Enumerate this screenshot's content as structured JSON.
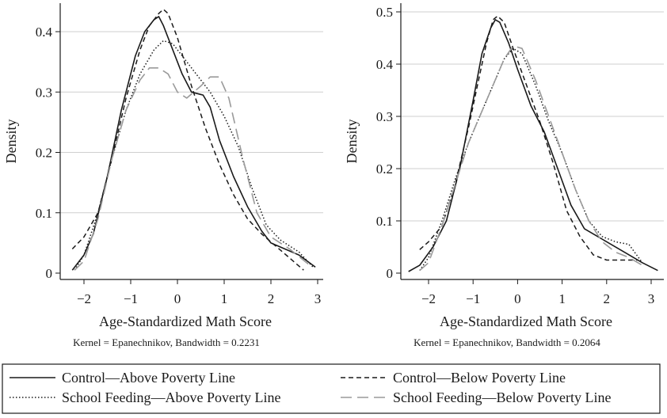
{
  "chart_data": [
    {
      "type": "line",
      "xlabel": "Age-Standardized Math Score",
      "ylabel": "Density",
      "note": "Kernel = Epanechnikov, Bandwidth = 0.2231",
      "xlim": [
        -2.3,
        3.0
      ],
      "ylim": [
        0,
        0.45
      ],
      "xticks": [
        -2,
        -1,
        0,
        1,
        2,
        3
      ],
      "yticks": [
        0,
        0.1,
        0.2,
        0.3,
        0.4
      ],
      "grid": "horizontal",
      "series": [
        {
          "name": "Control—Above Poverty Line",
          "x": [
            -2.25,
            -2.0,
            -1.8,
            -1.5,
            -1.2,
            -0.9,
            -0.7,
            -0.5,
            -0.4,
            -0.3,
            -0.1,
            0.1,
            0.3,
            0.55,
            0.7,
            0.9,
            1.2,
            1.5,
            1.8,
            2.0,
            2.3,
            2.6,
            2.95
          ],
          "y": [
            0.005,
            0.03,
            0.065,
            0.16,
            0.27,
            0.36,
            0.4,
            0.42,
            0.425,
            0.41,
            0.37,
            0.33,
            0.3,
            0.295,
            0.275,
            0.22,
            0.16,
            0.11,
            0.07,
            0.05,
            0.04,
            0.03,
            0.01
          ]
        },
        {
          "name": "Control—Below Poverty Line",
          "x": [
            -2.25,
            -2.0,
            -1.7,
            -1.4,
            -1.1,
            -0.8,
            -0.6,
            -0.4,
            -0.3,
            -0.2,
            0.0,
            0.3,
            0.6,
            0.9,
            1.2,
            1.5,
            1.8,
            2.1,
            2.4,
            2.7
          ],
          "y": [
            0.04,
            0.06,
            0.1,
            0.19,
            0.29,
            0.37,
            0.41,
            0.43,
            0.437,
            0.43,
            0.39,
            0.31,
            0.24,
            0.18,
            0.13,
            0.09,
            0.065,
            0.045,
            0.025,
            0.005
          ]
        },
        {
          "name": "School Feeding—Above Poverty Line",
          "x": [
            -2.2,
            -2.0,
            -1.7,
            -1.4,
            -1.1,
            -0.8,
            -0.5,
            -0.3,
            -0.1,
            0.1,
            0.4,
            0.7,
            1.0,
            1.3,
            1.6,
            1.9,
            2.2,
            2.6,
            2.9
          ],
          "y": [
            0.005,
            0.03,
            0.1,
            0.19,
            0.27,
            0.33,
            0.37,
            0.385,
            0.38,
            0.36,
            0.33,
            0.3,
            0.26,
            0.21,
            0.14,
            0.08,
            0.055,
            0.035,
            0.01
          ]
        },
        {
          "name": "School Feeding—Below Poverty Line",
          "x": [
            -2.2,
            -2.0,
            -1.7,
            -1.4,
            -1.1,
            -0.8,
            -0.6,
            -0.4,
            -0.2,
            0.0,
            0.2,
            0.5,
            0.7,
            0.9,
            1.1,
            1.4,
            1.7,
            2.0,
            2.4,
            2.8
          ],
          "y": [
            0.005,
            0.02,
            0.09,
            0.19,
            0.27,
            0.32,
            0.34,
            0.34,
            0.33,
            0.3,
            0.29,
            0.31,
            0.325,
            0.325,
            0.29,
            0.19,
            0.1,
            0.06,
            0.04,
            0.015
          ]
        }
      ]
    },
    {
      "type": "line",
      "xlabel": "Age-Standardized Math Score",
      "ylabel": "Density",
      "note": "Kernel = Epanechnikov, Bandwidth = 0.2064",
      "xlim": [
        -2.5,
        3.2
      ],
      "ylim": [
        0,
        0.51
      ],
      "xticks": [
        -2,
        -1,
        0,
        1,
        2,
        3
      ],
      "yticks": [
        0,
        0.1,
        0.2,
        0.3,
        0.4,
        0.5
      ],
      "grid": "horizontal",
      "series": [
        {
          "name": "Control—Above Poverty Line",
          "x": [
            -2.45,
            -2.2,
            -1.9,
            -1.6,
            -1.3,
            -1.0,
            -0.8,
            -0.6,
            -0.5,
            -0.4,
            -0.2,
            0.0,
            0.3,
            0.6,
            0.9,
            1.2,
            1.5,
            1.8,
            2.1,
            2.4,
            2.8,
            3.15
          ],
          "y": [
            0.003,
            0.015,
            0.05,
            0.1,
            0.2,
            0.33,
            0.42,
            0.47,
            0.485,
            0.48,
            0.44,
            0.39,
            0.32,
            0.27,
            0.2,
            0.13,
            0.085,
            0.07,
            0.055,
            0.04,
            0.02,
            0.005
          ]
        },
        {
          "name": "Control—Below Poverty Line",
          "x": [
            -2.2,
            -2.0,
            -1.7,
            -1.4,
            -1.1,
            -0.9,
            -0.7,
            -0.55,
            -0.45,
            -0.3,
            -0.1,
            0.2,
            0.5,
            0.8,
            1.1,
            1.4,
            1.7,
            2.0,
            2.3,
            2.7
          ],
          "y": [
            0.045,
            0.06,
            0.09,
            0.17,
            0.28,
            0.36,
            0.44,
            0.485,
            0.492,
            0.48,
            0.43,
            0.36,
            0.29,
            0.21,
            0.12,
            0.07,
            0.035,
            0.025,
            0.025,
            0.025
          ]
        },
        {
          "name": "School Feeding—Above Poverty Line",
          "x": [
            -2.2,
            -2.0,
            -1.7,
            -1.4,
            -1.1,
            -0.8,
            -0.5,
            -0.3,
            -0.1,
            0.1,
            0.4,
            0.7,
            1.0,
            1.3,
            1.6,
            1.9,
            2.2,
            2.5,
            2.8
          ],
          "y": [
            0.005,
            0.03,
            0.1,
            0.18,
            0.25,
            0.31,
            0.37,
            0.41,
            0.43,
            0.42,
            0.36,
            0.29,
            0.23,
            0.16,
            0.1,
            0.07,
            0.06,
            0.055,
            0.02
          ]
        },
        {
          "name": "School Feeding—Below Poverty Line",
          "x": [
            -2.2,
            -2.0,
            -1.7,
            -1.4,
            -1.1,
            -0.8,
            -0.5,
            -0.3,
            -0.1,
            0.1,
            0.4,
            0.7,
            1.0,
            1.3,
            1.6,
            1.9,
            2.2,
            2.5,
            2.8
          ],
          "y": [
            0.005,
            0.02,
            0.09,
            0.17,
            0.25,
            0.31,
            0.37,
            0.41,
            0.435,
            0.43,
            0.37,
            0.3,
            0.23,
            0.16,
            0.1,
            0.06,
            0.04,
            0.03,
            0.015
          ]
        }
      ]
    }
  ],
  "legend": {
    "items": [
      "Control—Above Poverty Line",
      "Control—Below Poverty Line",
      "School Feeding—Above Poverty Line",
      "School Feeding—Below Poverty Line"
    ]
  }
}
